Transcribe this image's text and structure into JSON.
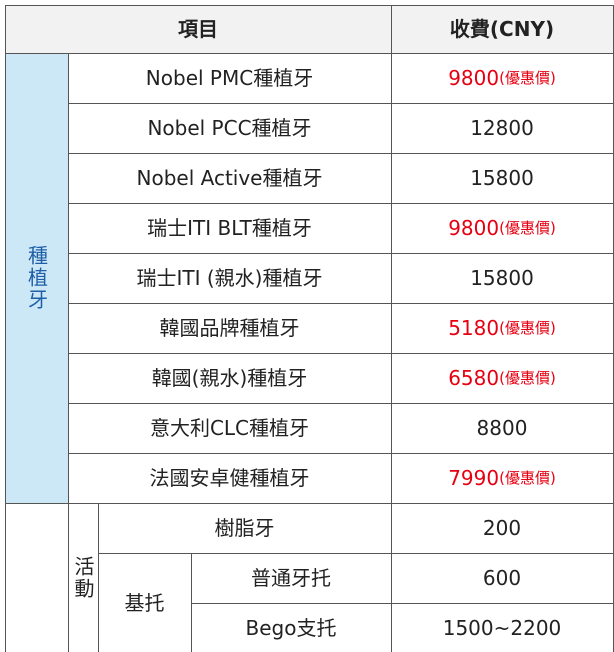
{
  "header": {
    "item": "項目",
    "fee": "收費(CNY)"
  },
  "category_implant": "種植牙",
  "implants": [
    {
      "name": "Nobel PMC種植牙",
      "price": "9800",
      "note": "(優惠價)",
      "highlight": true
    },
    {
      "name": "Nobel PCC種植牙",
      "price": "12800",
      "note": "",
      "highlight": false
    },
    {
      "name": "Nobel Active種植牙",
      "price": "15800",
      "note": "",
      "highlight": false
    },
    {
      "name": "瑞士ITI BLT種植牙",
      "price": "9800",
      "note": "(優惠價)",
      "highlight": true
    },
    {
      "name": "瑞士ITI (親水)種植牙",
      "price": "15800",
      "note": "",
      "highlight": false
    },
    {
      "name": "韓國品牌種植牙",
      "price": "5180",
      "note": "(優惠價)",
      "highlight": true
    },
    {
      "name": "韓國(親水)種植牙",
      "price": "6580",
      "note": "(優惠價)",
      "highlight": true
    },
    {
      "name": "意大利CLC種植牙",
      "price": "8800",
      "note": "",
      "highlight": false
    },
    {
      "name": "法國安卓健種植牙",
      "price": "7990",
      "note": "(優惠價)",
      "highlight": true
    }
  ],
  "removable": {
    "group": "活動",
    "resin": {
      "name": "樹脂牙",
      "price": "200"
    },
    "base_group": "基托",
    "base_items": [
      {
        "name": "普通牙托",
        "price": "600"
      },
      {
        "name": "Bego支托",
        "price": "1500~2200"
      }
    ]
  },
  "colors": {
    "highlight": "#e60012",
    "category_bg": "#cce7f6",
    "category_text": "#1f5fa8",
    "header_bg": "#f2f2f2"
  }
}
